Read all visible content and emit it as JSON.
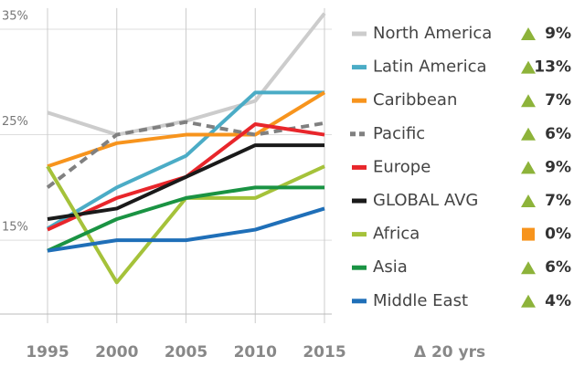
{
  "chart_data": {
    "type": "line",
    "x": [
      1995,
      2000,
      2005,
      2010,
      2015
    ],
    "xlim": [
      1995,
      2015
    ],
    "xticks": [
      1995,
      2000,
      2005,
      2010,
      2015
    ],
    "ylim": [
      8,
      37
    ],
    "yticks": [
      {
        "value": 15,
        "label": "15%"
      },
      {
        "value": 25,
        "label": "25%"
      },
      {
        "value": 35,
        "label": "35%"
      }
    ],
    "grid": true,
    "change_header": "Δ 20 yrs",
    "series": [
      {
        "name": "North America",
        "color": "#cccccc",
        "values": [
          27.1,
          25,
          26.3,
          28.2,
          36.5
        ],
        "change": 9,
        "change_label": "9%",
        "trend": "up"
      },
      {
        "name": "Latin America",
        "color": "#4bacc6",
        "values": [
          16.1,
          20,
          23,
          29,
          29
        ],
        "change": 13,
        "change_label": "13%",
        "trend": "up"
      },
      {
        "name": "Caribbean",
        "color": "#f7941d",
        "values": [
          22,
          24.2,
          25,
          25,
          29
        ],
        "change": 7,
        "change_label": "7%",
        "trend": "up"
      },
      {
        "name": "Pacific",
        "color": "#808080",
        "dashed": true,
        "values": [
          20,
          25,
          26.2,
          25,
          26.1
        ],
        "change": 6,
        "change_label": "6%",
        "trend": "up"
      },
      {
        "name": "Europe",
        "color": "#e8262b",
        "values": [
          16,
          19,
          21,
          26,
          25
        ],
        "change": 9,
        "change_label": "9%",
        "trend": "up"
      },
      {
        "name": "GLOBAL AVG",
        "color": "#1a1a1a",
        "values": [
          17,
          18,
          21,
          24,
          24
        ],
        "change": 7,
        "change_label": "7%",
        "trend": "up"
      },
      {
        "name": "Africa",
        "color": "#a5c23a",
        "values": [
          22,
          11,
          19,
          19,
          22
        ],
        "change": 0,
        "change_label": "0%",
        "trend": "flat"
      },
      {
        "name": "Asia",
        "color": "#1a9343",
        "values": [
          14,
          17,
          19,
          20,
          20
        ],
        "change": 6,
        "change_label": "6%",
        "trend": "up"
      },
      {
        "name": "Middle East",
        "color": "#1f6fb8",
        "values": [
          14,
          15,
          15,
          16,
          18
        ],
        "change": 4,
        "change_label": "4%",
        "trend": "up"
      }
    ]
  }
}
